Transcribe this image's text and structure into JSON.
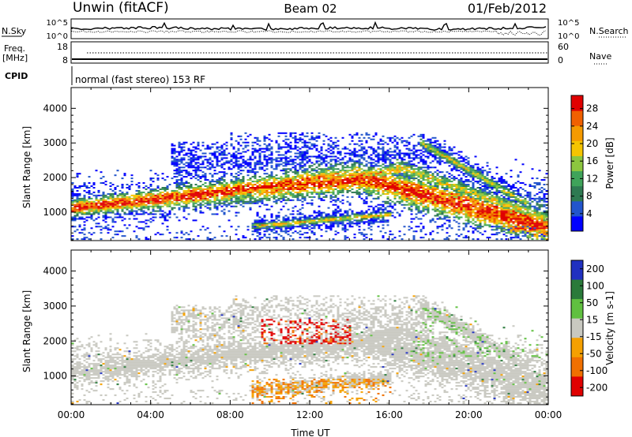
{
  "header": {
    "station": "Unwin (fitACF)",
    "beam": "Beam 02",
    "date": "01/Feb/2012"
  },
  "noise_panel": {
    "left_label": "N.Sky",
    "right_label": "N.Search",
    "left_ticks": [
      "10^5",
      "10^0"
    ],
    "right_ticks": [
      "10^5",
      "10^0"
    ]
  },
  "freq_panel": {
    "left_label_line1": "Freq.",
    "left_label_line2": "[MHz]",
    "right_label": "Nave",
    "left_ticks": [
      "18",
      "8"
    ],
    "right_ticks": [
      "60",
      "0"
    ]
  },
  "cpid": {
    "label": "CPID",
    "text": "normal (fast stereo) 153 RF"
  },
  "colors": {
    "power": [
      "#0000ff",
      "#2255cc",
      "#2e7a52",
      "#3fa35a",
      "#8cc63f",
      "#f5c400",
      "#f59a00",
      "#f06000",
      "#e00000"
    ],
    "velocity": [
      "#2030c0",
      "#2a7a3a",
      "#60c040",
      "#c8c8c0",
      "#f5a000",
      "#f07000",
      "#e00000"
    ]
  },
  "chart_data": [
    {
      "type": "heatmap",
      "name": "power",
      "xlabel": "",
      "ylabel": "Slant Range [km]",
      "xlim": [
        0,
        24
      ],
      "ylim": [
        180,
        4600
      ],
      "yticks": [
        "1000",
        "2000",
        "3000",
        "4000"
      ],
      "colorbar": {
        "label": "Power [dB]",
        "ticks": [
          "4",
          "8",
          "12",
          "16",
          "20",
          "24",
          "28"
        ],
        "range": [
          0,
          31
        ]
      }
    },
    {
      "type": "heatmap",
      "name": "velocity",
      "xlabel": "Time UT",
      "ylabel": "Slant Range [km]",
      "xlim": [
        0,
        24
      ],
      "ylim": [
        180,
        4600
      ],
      "yticks": [
        "1000",
        "2000",
        "3000",
        "4000"
      ],
      "xticks": [
        "00:00",
        "04:00",
        "08:00",
        "12:00",
        "16:00",
        "20:00",
        "00:00"
      ],
      "colorbar": {
        "label": "Velocity [m s-1]",
        "ticks": [
          "200",
          "100",
          "50",
          "15",
          "-15",
          "-50",
          "-100",
          "-200"
        ]
      }
    }
  ]
}
